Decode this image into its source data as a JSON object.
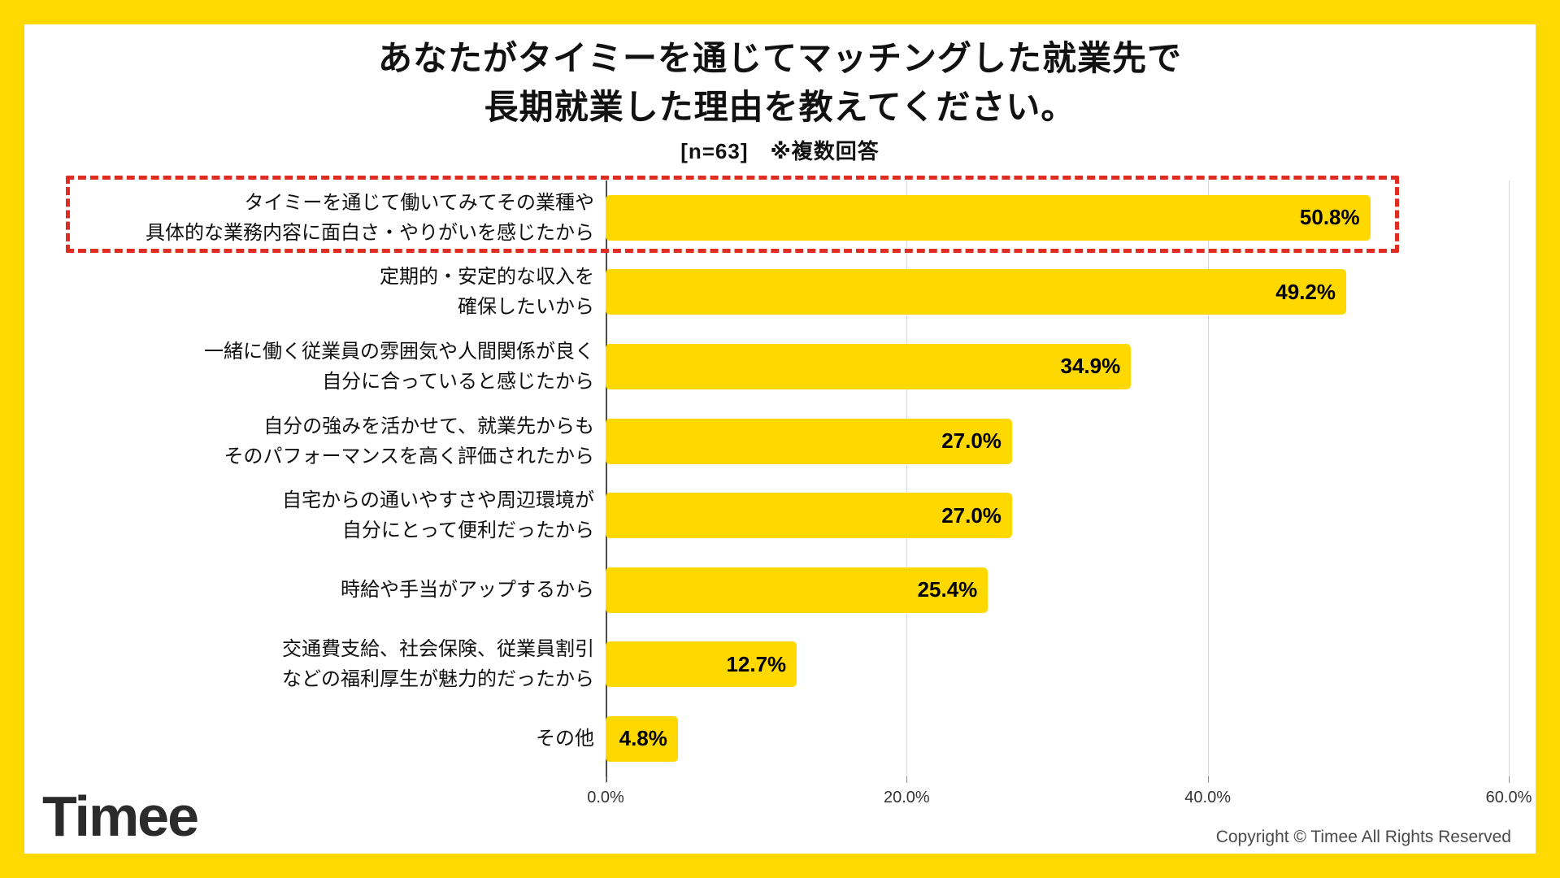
{
  "colors": {
    "brand_yellow": "#FFD900",
    "bar_yellow": "#FFD800",
    "highlight_red": "#E02B20",
    "grid_gray": "#DADADA",
    "axis_gray": "#4D4D4D",
    "logo_dark": "#2B2B2B",
    "muted_gray": "#4A4A4A"
  },
  "header": {
    "title_line1": "あなたがタイミーを通じてマッチングした就業先で",
    "title_line2": "長期就業した理由を教えてください。",
    "subtitle": "[n=63]　※複数回答"
  },
  "chart_data": {
    "type": "bar",
    "orientation": "horizontal",
    "title": "あなたがタイミーを通じてマッチングした就業先で長期就業した理由を教えてください。",
    "subtitle": "[n=63] ※複数回答",
    "categories": [
      "タイミーを通じて働いてみてその業種や具体的な業務内容に面白さ・やりがいを感じたから",
      "定期的・安定的な収入を確保したいから",
      "一緒に働く従業員の雰囲気や人間関係が良く自分に合っていると感じたから",
      "自分の強みを活かせて、就業先からもそのパフォーマンスを高く評価されたから",
      "自宅からの通いやすさや周辺環境が自分にとって便利だったから",
      "時給や手当がアップするから",
      "交通費支給、社会保険、従業員割引などの福利厚生が魅力的だったから",
      "その他"
    ],
    "categories_lines": [
      [
        "タイミーを通じて働いてみてその業種や",
        "具体的な業務内容に面白さ・やりがいを感じたから"
      ],
      [
        "定期的・安定的な収入を",
        "確保したいから"
      ],
      [
        "一緒に働く従業員の雰囲気や人間関係が良く",
        "自分に合っていると感じたから"
      ],
      [
        "自分の強みを活かせて、就業先からも",
        "そのパフォーマンスを高く評価されたから"
      ],
      [
        "自宅からの通いやすさや周辺環境が",
        "自分にとって便利だったから"
      ],
      [
        "時給や手当がアップするから"
      ],
      [
        "交通費支給、社会保険、従業員割引",
        "などの福利厚生が魅力的だったから"
      ],
      [
        "その他"
      ]
    ],
    "values": [
      50.8,
      49.2,
      34.9,
      27.0,
      27.0,
      25.4,
      12.7,
      4.8
    ],
    "value_labels": [
      "50.8%",
      "49.2%",
      "34.9%",
      "27.0%",
      "27.0%",
      "25.4%",
      "12.7%",
      "4.8%"
    ],
    "xlabel": "",
    "ylabel": "",
    "xlim": [
      0,
      60
    ],
    "xticks": [
      0,
      20,
      40,
      60
    ],
    "xtick_labels": [
      "0.0%",
      "20.0%",
      "40.0%",
      "60.0%"
    ],
    "grid": "vertical-lines-on",
    "legend": "none",
    "highlight": {
      "index": 0,
      "style": "red-dashed-box"
    }
  },
  "footer": {
    "logo_text": "Timee",
    "copyright": "Copyright © Timee All Rights Reserved"
  }
}
